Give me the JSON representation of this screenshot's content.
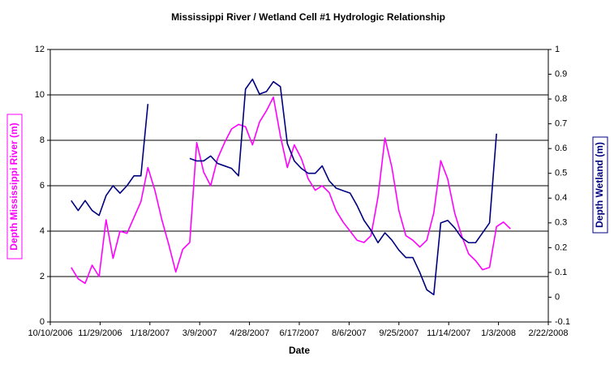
{
  "chart_data": {
    "type": "line",
    "title": "Mississippi River / Wetland Cell #1 Hydrologic Relationship",
    "xlabel": "Date",
    "ylabel": "Depth Mississippi River (m)",
    "y2label": "Depth Wetland (m)",
    "x": [
      "2006-10-31",
      "2006-11-07",
      "2006-11-14",
      "2006-11-21",
      "2006-11-28",
      "2006-12-05",
      "2006-12-12",
      "2006-12-19",
      "2006-12-26",
      "2007-01-02",
      "2007-01-09",
      "2007-01-16",
      "2007-01-23",
      "2007-01-30",
      "2007-02-06",
      "2007-02-13",
      "2007-02-20",
      "2007-02-27",
      "2007-03-06",
      "2007-03-13",
      "2007-03-20",
      "2007-03-27",
      "2007-04-03",
      "2007-04-10",
      "2007-04-17",
      "2007-04-24",
      "2007-05-01",
      "2007-05-08",
      "2007-05-15",
      "2007-05-22",
      "2007-05-29",
      "2007-06-05",
      "2007-06-12",
      "2007-06-19",
      "2007-06-26",
      "2007-07-03",
      "2007-07-10",
      "2007-07-17",
      "2007-07-24",
      "2007-07-31",
      "2007-08-07",
      "2007-08-14",
      "2007-08-21",
      "2007-08-28",
      "2007-09-04",
      "2007-09-11",
      "2007-09-18",
      "2007-09-25",
      "2007-10-02",
      "2007-10-09",
      "2007-10-16",
      "2007-10-23",
      "2007-10-30",
      "2007-11-06",
      "2007-11-13",
      "2007-11-20",
      "2007-11-27",
      "2007-12-04",
      "2007-12-11",
      "2007-12-18",
      "2007-12-25",
      "2008-01-01",
      "2008-01-08",
      "2008-01-15"
    ],
    "series": [
      {
        "name": "Depth Mississippi River (m)",
        "color": "#ff00ff",
        "axis": "y",
        "values": [
          2.4,
          1.9,
          1.7,
          2.5,
          2.0,
          4.5,
          2.8,
          4.0,
          3.9,
          4.6,
          5.3,
          6.8,
          5.8,
          4.5,
          3.4,
          2.2,
          3.2,
          3.5,
          7.9,
          6.6,
          6.0,
          7.2,
          7.9,
          8.5,
          8.7,
          8.6,
          7.8,
          8.8,
          9.3,
          9.9,
          8.2,
          6.8,
          7.8,
          7.2,
          6.3,
          5.8,
          6.0,
          5.7,
          4.9,
          4.4,
          4.0,
          3.6,
          3.5,
          3.8,
          5.5,
          8.1,
          6.8,
          4.9,
          3.8,
          3.6,
          3.3,
          3.6,
          4.8,
          7.1,
          6.3,
          4.8,
          3.8,
          3.0,
          2.7,
          2.3,
          2.4,
          4.2,
          4.4,
          4.1
        ]
      },
      {
        "name": "Depth Wetland (m)",
        "color": "#000080",
        "axis": "y2",
        "values": [
          0.39,
          0.35,
          0.39,
          0.35,
          0.33,
          0.41,
          0.45,
          0.42,
          0.45,
          0.49,
          0.49,
          0.78,
          null,
          null,
          null,
          null,
          null,
          0.56,
          0.55,
          0.55,
          0.57,
          0.54,
          0.53,
          0.52,
          0.49,
          0.84,
          0.88,
          0.82,
          0.83,
          0.87,
          0.85,
          0.62,
          0.55,
          0.52,
          0.5,
          0.5,
          0.53,
          0.47,
          0.44,
          0.43,
          0.42,
          0.37,
          0.31,
          0.27,
          0.22,
          0.26,
          0.23,
          0.19,
          0.16,
          0.16,
          0.1,
          0.03,
          0.01,
          0.3,
          0.31,
          0.28,
          0.24,
          0.22,
          0.22,
          0.26,
          0.3,
          0.66,
          null,
          null
        ]
      }
    ],
    "xlim": [
      "2006-10-10",
      "2008-02-22"
    ],
    "xticks": [
      {
        "value": "2006-10-10",
        "label": "10/10/2006"
      },
      {
        "value": "2006-11-29",
        "label": "11/29/2006"
      },
      {
        "value": "2007-01-18",
        "label": "1/18/2007"
      },
      {
        "value": "2007-03-09",
        "label": "3/9/2007"
      },
      {
        "value": "2007-04-28",
        "label": "4/28/2007"
      },
      {
        "value": "2007-06-17",
        "label": "6/17/2007"
      },
      {
        "value": "2007-08-06",
        "label": "8/6/2007"
      },
      {
        "value": "2007-09-25",
        "label": "9/25/2007"
      },
      {
        "value": "2007-11-14",
        "label": "11/14/2007"
      },
      {
        "value": "2008-01-03",
        "label": "1/3/2008"
      },
      {
        "value": "2008-02-22",
        "label": "2/22/2008"
      }
    ],
    "ylim": [
      0,
      12
    ],
    "yticks": [
      0,
      2,
      4,
      6,
      8,
      10,
      12
    ],
    "y2lim": [
      -0.1,
      1
    ],
    "y2ticks": [
      -0.1,
      0,
      0.1,
      0.2,
      0.3,
      0.4,
      0.5,
      0.6,
      0.7,
      0.8,
      0.9,
      1
    ],
    "grid": true
  }
}
